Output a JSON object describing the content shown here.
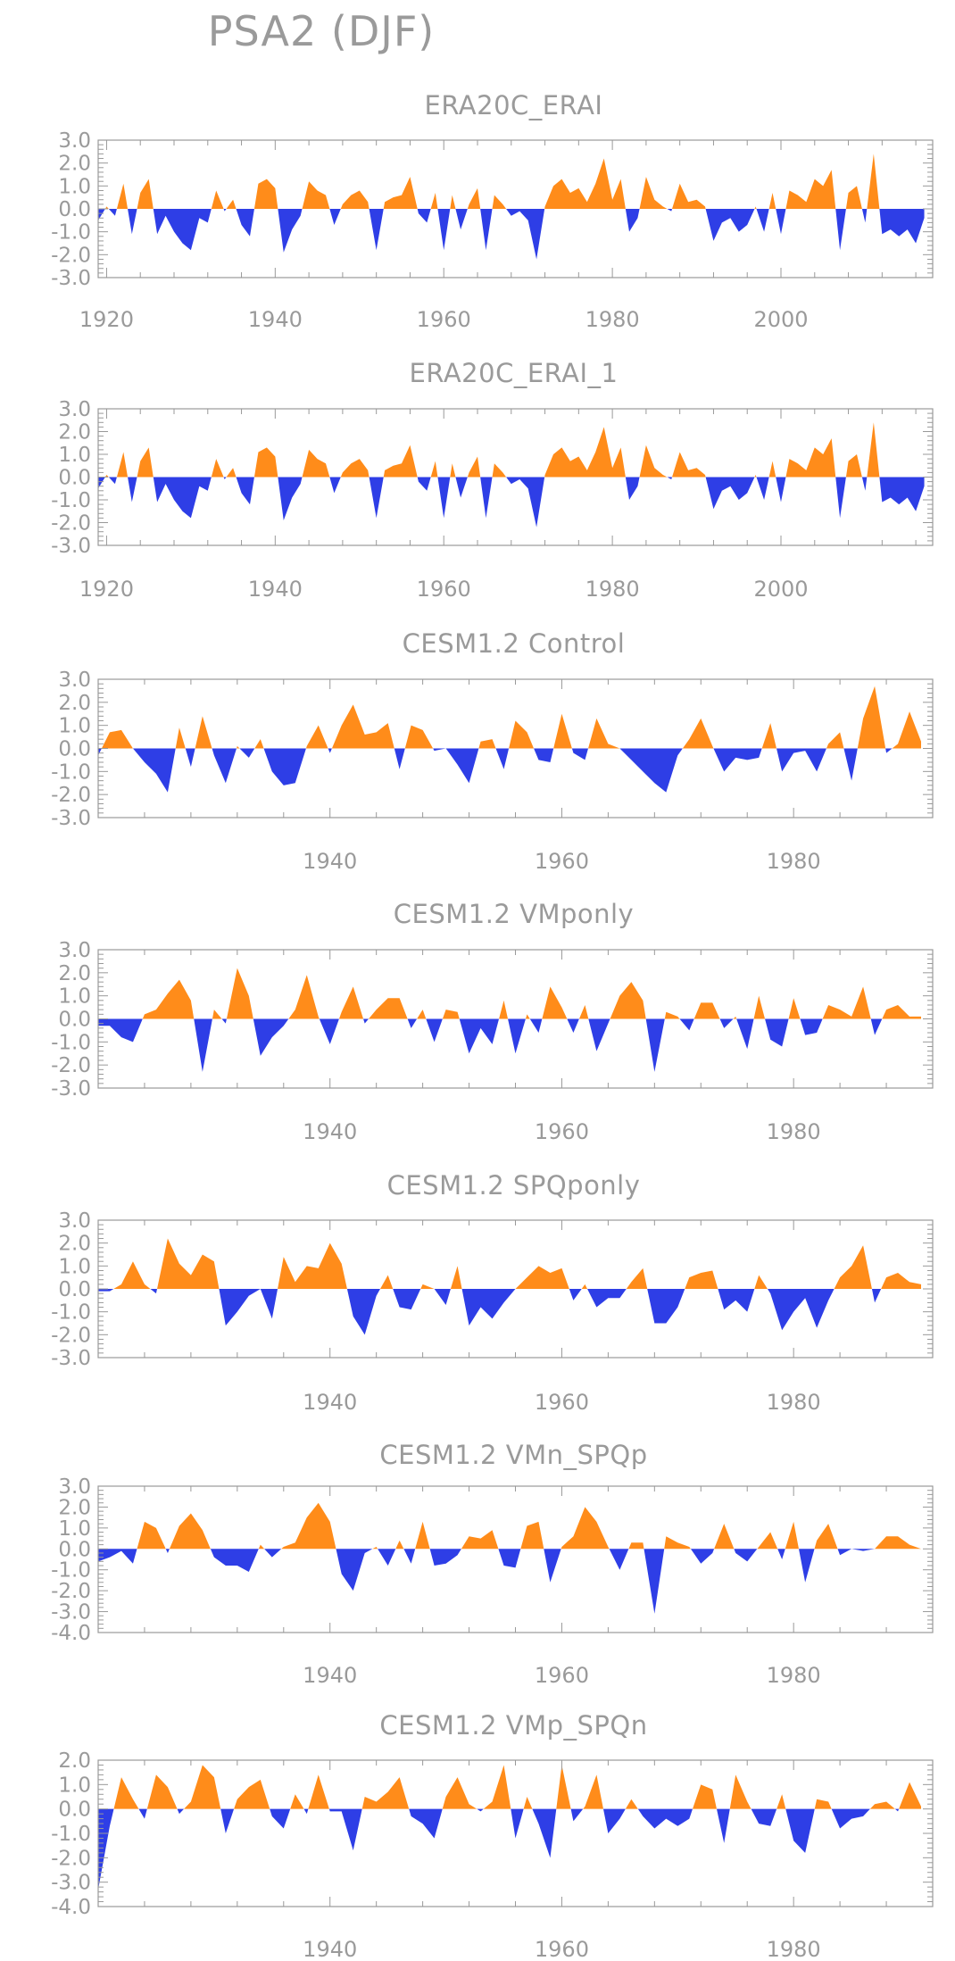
{
  "figure_title": "PSA2 (DJF)",
  "colors": {
    "positive": "#ff8c1a",
    "negative": "#2e3ee6",
    "axis": "#999999",
    "text": "#9a9a9a"
  },
  "chart_data": [
    {
      "type": "area",
      "title": "ERA20C_ERAI",
      "xlim": [
        1919,
        2018
      ],
      "ylim": [
        -3.0,
        3.0
      ],
      "yticks": [
        -3.0,
        -2.0,
        -1.0,
        0.0,
        1.0,
        2.0,
        3.0
      ],
      "xticks": [
        1920,
        1940,
        1960,
        1980,
        2000
      ],
      "x": [
        1919,
        1920,
        1921,
        1922,
        1923,
        1924,
        1925,
        1926,
        1927,
        1928,
        1929,
        1930,
        1931,
        1932,
        1933,
        1934,
        1935,
        1936,
        1937,
        1938,
        1939,
        1940,
        1941,
        1942,
        1943,
        1944,
        1945,
        1946,
        1947,
        1948,
        1949,
        1950,
        1951,
        1952,
        1953,
        1954,
        1955,
        1956,
        1957,
        1958,
        1959,
        1960,
        1961,
        1962,
        1963,
        1964,
        1965,
        1966,
        1967,
        1968,
        1969,
        1970,
        1971,
        1972,
        1973,
        1974,
        1975,
        1976,
        1977,
        1978,
        1979,
        1980,
        1981,
        1982,
        1983,
        1984,
        1985,
        1986,
        1987,
        1988,
        1989,
        1990,
        1991,
        1992,
        1993,
        1994,
        1995,
        1996,
        1997,
        1998,
        1999,
        2000,
        2001,
        2002,
        2003,
        2004,
        2005,
        2006,
        2007,
        2008,
        2009,
        2010,
        2011,
        2012,
        2013,
        2014,
        2015,
        2016,
        2017
      ],
      "values": [
        -0.5,
        0.1,
        -0.3,
        1.1,
        -1.1,
        0.7,
        1.3,
        -1.1,
        -0.3,
        -1.0,
        -1.5,
        -1.8,
        -0.4,
        -0.6,
        0.8,
        -0.1,
        0.4,
        -0.7,
        -1.2,
        1.1,
        1.3,
        0.9,
        -1.9,
        -0.9,
        -0.3,
        1.2,
        0.8,
        0.6,
        -0.7,
        0.2,
        0.6,
        0.8,
        0.3,
        -1.8,
        0.3,
        0.5,
        0.6,
        1.4,
        -0.2,
        -0.6,
        0.7,
        -1.8,
        0.6,
        -0.9,
        0.2,
        0.9,
        -1.8,
        0.6,
        0.2,
        -0.3,
        -0.1,
        -0.5,
        -2.2,
        0.1,
        1.0,
        1.3,
        0.7,
        0.9,
        0.3,
        1.1,
        2.2,
        0.4,
        1.3,
        -1.0,
        -0.4,
        1.4,
        0.4,
        0.1,
        -0.1,
        1.1,
        0.3,
        0.4,
        0.1,
        -1.4,
        -0.6,
        -0.4,
        -1.0,
        -0.7,
        0.1,
        -1.0,
        0.7,
        -1.1,
        0.8,
        0.6,
        0.3,
        1.3,
        1.0,
        1.7,
        -1.8,
        0.7,
        1.0,
        -0.6,
        2.4,
        -1.1,
        -0.9,
        -1.2,
        -0.9,
        -1.5,
        -0.4
      ]
    },
    {
      "type": "area",
      "title": "ERA20C_ERAI_1",
      "xlim": [
        1919,
        2018
      ],
      "ylim": [
        -3.0,
        3.0
      ],
      "yticks": [
        -3.0,
        -2.0,
        -1.0,
        0.0,
        1.0,
        2.0,
        3.0
      ],
      "xticks": [
        1920,
        1940,
        1960,
        1980,
        2000
      ],
      "x": [
        1919,
        1920,
        1921,
        1922,
        1923,
        1924,
        1925,
        1926,
        1927,
        1928,
        1929,
        1930,
        1931,
        1932,
        1933,
        1934,
        1935,
        1936,
        1937,
        1938,
        1939,
        1940,
        1941,
        1942,
        1943,
        1944,
        1945,
        1946,
        1947,
        1948,
        1949,
        1950,
        1951,
        1952,
        1953,
        1954,
        1955,
        1956,
        1957,
        1958,
        1959,
        1960,
        1961,
        1962,
        1963,
        1964,
        1965,
        1966,
        1967,
        1968,
        1969,
        1970,
        1971,
        1972,
        1973,
        1974,
        1975,
        1976,
        1977,
        1978,
        1979,
        1980,
        1981,
        1982,
        1983,
        1984,
        1985,
        1986,
        1987,
        1988,
        1989,
        1990,
        1991,
        1992,
        1993,
        1994,
        1995,
        1996,
        1997,
        1998,
        1999,
        2000,
        2001,
        2002,
        2003,
        2004,
        2005,
        2006,
        2007,
        2008,
        2009,
        2010,
        2011,
        2012,
        2013,
        2014,
        2015,
        2016,
        2017
      ],
      "values": [
        -0.5,
        0.1,
        -0.3,
        1.1,
        -1.1,
        0.7,
        1.3,
        -1.1,
        -0.3,
        -1.0,
        -1.5,
        -1.8,
        -0.4,
        -0.6,
        0.8,
        -0.1,
        0.4,
        -0.7,
        -1.2,
        1.1,
        1.3,
        0.9,
        -1.9,
        -0.9,
        -0.3,
        1.2,
        0.8,
        0.6,
        -0.7,
        0.2,
        0.6,
        0.8,
        0.3,
        -1.8,
        0.3,
        0.5,
        0.6,
        1.4,
        -0.2,
        -0.6,
        0.7,
        -1.8,
        0.6,
        -0.9,
        0.2,
        0.9,
        -1.8,
        0.6,
        0.2,
        -0.3,
        -0.1,
        -0.5,
        -2.2,
        0.1,
        1.0,
        1.3,
        0.7,
        0.9,
        0.3,
        1.1,
        2.2,
        0.4,
        1.3,
        -1.0,
        -0.4,
        1.4,
        0.4,
        0.1,
        -0.1,
        1.1,
        0.3,
        0.4,
        0.1,
        -1.4,
        -0.6,
        -0.4,
        -1.0,
        -0.7,
        0.1,
        -1.0,
        0.7,
        -1.1,
        0.8,
        0.6,
        0.3,
        1.3,
        1.0,
        1.7,
        -1.8,
        0.7,
        1.0,
        -0.6,
        2.4,
        -1.1,
        -0.9,
        -1.2,
        -0.9,
        -1.5,
        -0.4
      ]
    },
    {
      "type": "area",
      "title": "CESM1.2 Control",
      "xlim": [
        1920,
        1992
      ],
      "ylim": [
        -3.0,
        3.0
      ],
      "yticks": [
        -3.0,
        -2.0,
        -1.0,
        0.0,
        1.0,
        2.0,
        3.0
      ],
      "xticks": [
        1940,
        1960,
        1980
      ],
      "x": [
        1920,
        1921,
        1922,
        1923,
        1924,
        1925,
        1926,
        1927,
        1928,
        1929,
        1930,
        1931,
        1932,
        1933,
        1934,
        1935,
        1936,
        1937,
        1938,
        1939,
        1940,
        1941,
        1942,
        1943,
        1944,
        1945,
        1946,
        1947,
        1948,
        1949,
        1950,
        1951,
        1952,
        1953,
        1954,
        1955,
        1956,
        1957,
        1958,
        1959,
        1960,
        1961,
        1962,
        1963,
        1964,
        1965,
        1966,
        1967,
        1968,
        1969,
        1970,
        1971,
        1972,
        1973,
        1974,
        1975,
        1976,
        1977,
        1978,
        1979,
        1980,
        1981,
        1982,
        1983,
        1984,
        1985,
        1986,
        1987,
        1988,
        1989,
        1990,
        1991
      ],
      "values": [
        -0.3,
        0.7,
        0.8,
        0.0,
        -0.6,
        -1.1,
        -1.9,
        0.9,
        -0.8,
        1.4,
        -0.3,
        -1.5,
        0.1,
        -0.4,
        0.4,
        -1.0,
        -1.6,
        -1.5,
        0.1,
        1.0,
        -0.2,
        1.0,
        1.9,
        0.6,
        0.7,
        1.1,
        -0.9,
        1.0,
        0.8,
        -0.1,
        0.0,
        -0.7,
        -1.5,
        0.3,
        0.4,
        -0.9,
        1.2,
        0.7,
        -0.5,
        -0.6,
        1.5,
        -0.2,
        -0.5,
        1.3,
        0.2,
        0.0,
        -0.5,
        -1.0,
        -1.5,
        -1.9,
        -0.3,
        0.4,
        1.3,
        0.1,
        -1.0,
        -0.4,
        -0.5,
        -0.4,
        1.1,
        -1.0,
        -0.2,
        -0.1,
        -1.0,
        0.2,
        0.7,
        -1.4,
        1.3,
        2.7,
        -0.2,
        0.2,
        1.6,
        0.3
      ]
    },
    {
      "type": "area",
      "title": "CESM1.2 VMponly",
      "xlim": [
        1920,
        1992
      ],
      "ylim": [
        -3.0,
        3.0
      ],
      "yticks": [
        -3.0,
        -2.0,
        -1.0,
        0.0,
        1.0,
        2.0,
        3.0
      ],
      "xticks": [
        1940,
        1960,
        1980
      ],
      "x": [
        1920,
        1921,
        1922,
        1923,
        1924,
        1925,
        1926,
        1927,
        1928,
        1929,
        1930,
        1931,
        1932,
        1933,
        1934,
        1935,
        1936,
        1937,
        1938,
        1939,
        1940,
        1941,
        1942,
        1943,
        1944,
        1945,
        1946,
        1947,
        1948,
        1949,
        1950,
        1951,
        1952,
        1953,
        1954,
        1955,
        1956,
        1957,
        1958,
        1959,
        1960,
        1961,
        1962,
        1963,
        1964,
        1965,
        1966,
        1967,
        1968,
        1969,
        1970,
        1971,
        1972,
        1973,
        1974,
        1975,
        1976,
        1977,
        1978,
        1979,
        1980,
        1981,
        1982,
        1983,
        1984,
        1985,
        1986,
        1987,
        1988,
        1989,
        1990,
        1991
      ],
      "values": [
        -0.3,
        -0.3,
        -0.8,
        -1.0,
        0.2,
        0.4,
        1.1,
        1.7,
        0.8,
        -2.3,
        0.4,
        -0.2,
        2.2,
        1.0,
        -1.6,
        -0.8,
        -0.3,
        0.4,
        1.9,
        0.1,
        -1.1,
        0.3,
        1.4,
        -0.2,
        0.4,
        0.9,
        0.9,
        -0.4,
        0.4,
        -1.0,
        0.4,
        0.3,
        -1.5,
        -0.4,
        -1.1,
        0.8,
        -1.5,
        0.2,
        -0.6,
        1.4,
        0.5,
        -0.6,
        0.6,
        -1.4,
        -0.2,
        1.0,
        1.6,
        0.8,
        -2.3,
        0.3,
        0.1,
        -0.5,
        0.7,
        0.7,
        -0.4,
        0.1,
        -1.3,
        1.0,
        -0.9,
        -1.2,
        0.9,
        -0.7,
        -0.6,
        0.6,
        0.4,
        0.1,
        1.4,
        -0.7,
        0.4,
        0.6,
        0.1,
        0.1
      ]
    },
    {
      "type": "area",
      "title": "CESM1.2 SPQponly",
      "xlim": [
        1920,
        1992
      ],
      "ylim": [
        -3.0,
        3.0
      ],
      "yticks": [
        -3.0,
        -2.0,
        -1.0,
        0.0,
        1.0,
        2.0,
        3.0
      ],
      "xticks": [
        1940,
        1960,
        1980
      ],
      "x": [
        1920,
        1921,
        1922,
        1923,
        1924,
        1925,
        1926,
        1927,
        1928,
        1929,
        1930,
        1931,
        1932,
        1933,
        1934,
        1935,
        1936,
        1937,
        1938,
        1939,
        1940,
        1941,
        1942,
        1943,
        1944,
        1945,
        1946,
        1947,
        1948,
        1949,
        1950,
        1951,
        1952,
        1953,
        1954,
        1955,
        1956,
        1957,
        1958,
        1959,
        1960,
        1961,
        1962,
        1963,
        1964,
        1965,
        1966,
        1967,
        1968,
        1969,
        1970,
        1971,
        1972,
        1973,
        1974,
        1975,
        1976,
        1977,
        1978,
        1979,
        1980,
        1981,
        1982,
        1983,
        1984,
        1985,
        1986,
        1987,
        1988,
        1989,
        1990,
        1991
      ],
      "values": [
        -0.1,
        -0.1,
        0.2,
        1.2,
        0.2,
        -0.2,
        2.2,
        1.1,
        0.6,
        1.5,
        1.2,
        -1.6,
        -1.0,
        -0.3,
        0.0,
        -1.3,
        1.4,
        0.3,
        1.0,
        0.9,
        2.0,
        1.1,
        -1.2,
        -2.0,
        -0.3,
        0.6,
        -0.8,
        -0.9,
        0.2,
        0.0,
        -0.7,
        1.0,
        -1.6,
        -0.8,
        -1.3,
        -0.6,
        0.0,
        0.5,
        1.0,
        0.7,
        0.9,
        -0.5,
        0.2,
        -0.8,
        -0.4,
        -0.4,
        0.3,
        0.9,
        -1.5,
        -1.5,
        -0.8,
        0.5,
        0.7,
        0.8,
        -0.9,
        -0.5,
        -1.0,
        0.6,
        -0.2,
        -1.8,
        -1.0,
        -0.4,
        -1.7,
        -0.5,
        0.5,
        1.0,
        1.9,
        -0.6,
        0.5,
        0.7,
        0.3,
        0.2
      ]
    },
    {
      "type": "area",
      "title": "CESM1.2 VMn_SPQp",
      "xlim": [
        1920,
        1992
      ],
      "ylim": [
        -4.0,
        3.0
      ],
      "yticks": [
        -4.0,
        -3.0,
        -2.0,
        -1.0,
        0.0,
        1.0,
        2.0,
        3.0
      ],
      "xticks": [
        1940,
        1960,
        1980
      ],
      "x": [
        1920,
        1921,
        1922,
        1923,
        1924,
        1925,
        1926,
        1927,
        1928,
        1929,
        1930,
        1931,
        1932,
        1933,
        1934,
        1935,
        1936,
        1937,
        1938,
        1939,
        1940,
        1941,
        1942,
        1943,
        1944,
        1945,
        1946,
        1947,
        1948,
        1949,
        1950,
        1951,
        1952,
        1953,
        1954,
        1955,
        1956,
        1957,
        1958,
        1959,
        1960,
        1961,
        1962,
        1963,
        1964,
        1965,
        1966,
        1967,
        1968,
        1969,
        1970,
        1971,
        1972,
        1973,
        1974,
        1975,
        1976,
        1977,
        1978,
        1979,
        1980,
        1981,
        1982,
        1983,
        1984,
        1985,
        1986,
        1987,
        1988,
        1989,
        1990,
        1991
      ],
      "values": [
        -0.6,
        -0.4,
        -0.1,
        -0.7,
        1.3,
        1.0,
        -0.2,
        1.1,
        1.7,
        0.9,
        -0.4,
        -0.8,
        -0.8,
        -1.1,
        0.2,
        -0.4,
        0.1,
        0.3,
        1.5,
        2.2,
        1.3,
        -1.2,
        -2.0,
        -0.2,
        0.1,
        -0.8,
        0.4,
        -0.7,
        1.3,
        -0.8,
        -0.7,
        -0.3,
        0.6,
        0.5,
        0.9,
        -0.8,
        -0.9,
        1.1,
        1.3,
        -1.6,
        0.1,
        0.6,
        2.0,
        1.3,
        0.1,
        -1.0,
        0.3,
        0.3,
        -3.1,
        0.6,
        0.3,
        0.1,
        -0.7,
        -0.2,
        1.2,
        -0.2,
        -0.6,
        0.1,
        0.8,
        -0.5,
        1.3,
        -1.6,
        0.4,
        1.2,
        -0.3,
        0.0,
        -0.1,
        0.0,
        0.6,
        0.6,
        0.2,
        0.0
      ]
    },
    {
      "type": "area",
      "title": "CESM1.2 VMp_SPQn",
      "xlim": [
        1920,
        1992
      ],
      "ylim": [
        -4.0,
        2.0
      ],
      "yticks": [
        -4.0,
        -3.0,
        -2.0,
        -1.0,
        0.0,
        1.0,
        2.0
      ],
      "xticks": [
        1940,
        1960,
        1980
      ],
      "x": [
        1920,
        1921,
        1922,
        1923,
        1924,
        1925,
        1926,
        1927,
        1928,
        1929,
        1930,
        1931,
        1932,
        1933,
        1934,
        1935,
        1936,
        1937,
        1938,
        1939,
        1940,
        1941,
        1942,
        1943,
        1944,
        1945,
        1946,
        1947,
        1948,
        1949,
        1950,
        1951,
        1952,
        1953,
        1954,
        1955,
        1956,
        1957,
        1958,
        1959,
        1960,
        1961,
        1962,
        1963,
        1964,
        1965,
        1966,
        1967,
        1968,
        1969,
        1970,
        1971,
        1972,
        1973,
        1974,
        1975,
        1976,
        1977,
        1978,
        1979,
        1980,
        1981,
        1982,
        1983,
        1984,
        1985,
        1986,
        1987,
        1988,
        1989,
        1990,
        1991
      ],
      "values": [
        -3.3,
        -0.7,
        1.3,
        0.4,
        -0.4,
        1.4,
        0.9,
        -0.2,
        0.3,
        1.8,
        1.3,
        -1.0,
        0.4,
        0.9,
        1.2,
        -0.3,
        -0.8,
        0.6,
        -0.2,
        1.4,
        -0.1,
        -0.1,
        -1.7,
        0.5,
        0.3,
        0.7,
        1.3,
        -0.3,
        -0.6,
        -1.2,
        0.5,
        1.3,
        0.2,
        -0.1,
        0.3,
        1.8,
        -1.2,
        0.5,
        -0.6,
        -2.0,
        1.8,
        -0.5,
        0.1,
        1.4,
        -1.0,
        -0.4,
        0.4,
        -0.3,
        -0.8,
        -0.4,
        -0.7,
        -0.4,
        1.0,
        0.8,
        -1.4,
        1.4,
        0.3,
        -0.6,
        -0.7,
        0.6,
        -1.3,
        -1.8,
        0.4,
        0.3,
        -0.8,
        -0.4,
        -0.3,
        0.2,
        0.3,
        -0.1,
        1.1,
        0.1
      ]
    }
  ]
}
